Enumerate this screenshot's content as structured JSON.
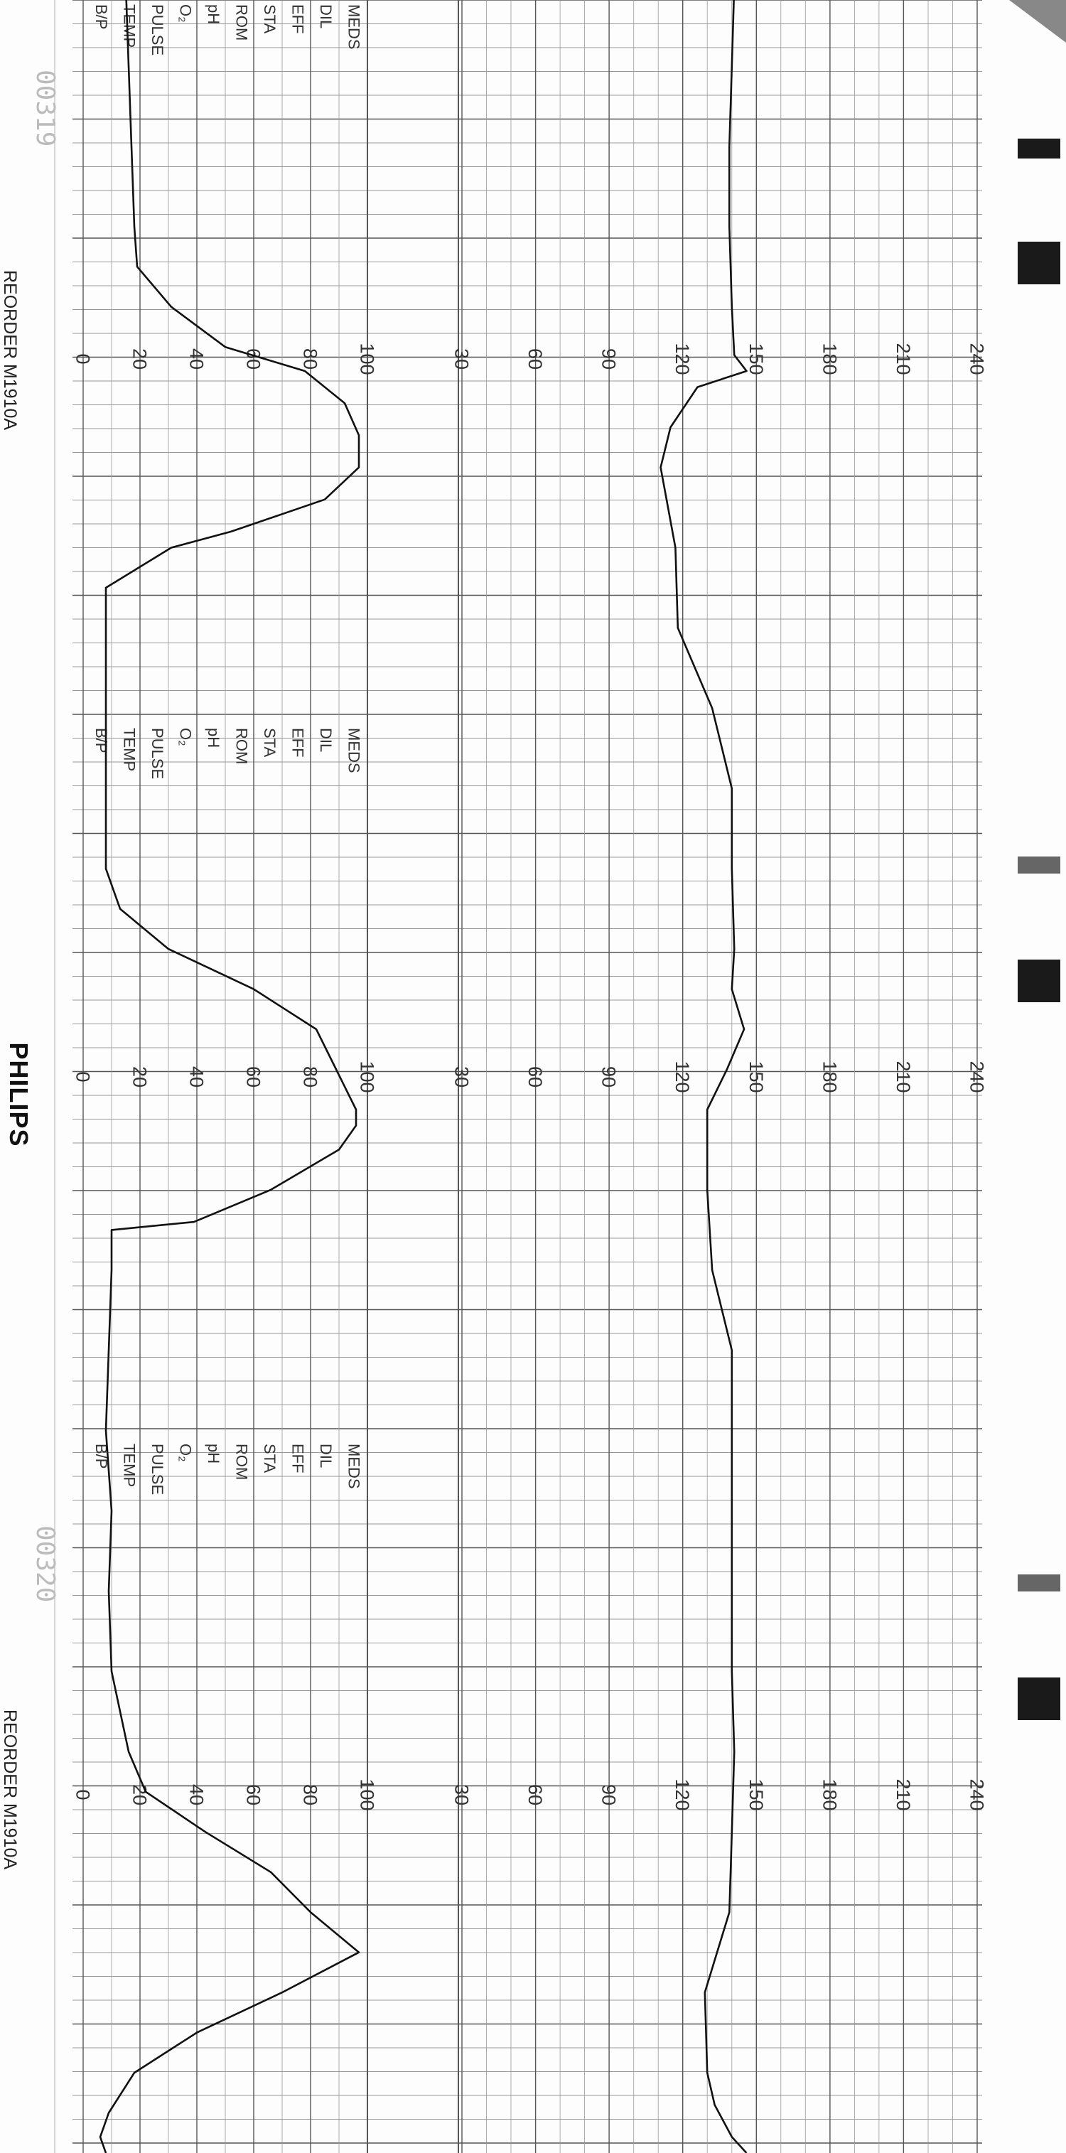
{
  "brand": "PHILIPS",
  "reorder_label": "REORDER M1910A",
  "serial_numbers": [
    "00319",
    "00320"
  ],
  "annotation_labels": [
    "MEDS",
    "DIL",
    "EFF",
    "STA",
    "ROM",
    "pH",
    "O₂",
    "PULSE",
    "TEMP",
    "B/P"
  ],
  "colors": {
    "grid": "#999999",
    "grid_major": "#555555",
    "trace": "#111111",
    "paper": "#fdfdfd",
    "mark": "#1a1a1a"
  },
  "chart_data": [
    {
      "type": "line",
      "title": "",
      "xlabel": "",
      "ylabel": "",
      "ylim": [
        30,
        240
      ],
      "y_ticks": [
        30,
        60,
        90,
        120,
        150,
        180,
        210,
        240
      ],
      "x": [
        0,
        10,
        20,
        30,
        40,
        46,
        48,
        50,
        55,
        60,
        70,
        80,
        90,
        100,
        110,
        120,
        125,
        130,
        135,
        140,
        150,
        160,
        170,
        180,
        190,
        200,
        210,
        220,
        230,
        240,
        250,
        260,
        264,
        268,
        270
      ],
      "series": [
        {
          "values": [
            141,
            140,
            139,
            139,
            140,
            141,
            146,
            126,
            115,
            111,
            117,
            118,
            132,
            140,
            140,
            141,
            140,
            145,
            138,
            130,
            130,
            132,
            140,
            140,
            140,
            140,
            140,
            141,
            140,
            139,
            129,
            130,
            133,
            140,
            146
          ]
        }
      ]
    },
    {
      "type": "line",
      "title": "",
      "xlabel": "",
      "ylabel": "",
      "ylim": [
        0,
        100
      ],
      "y_ticks": [
        0,
        20,
        40,
        60,
        80,
        100
      ],
      "x": [
        0,
        10,
        20,
        30,
        35,
        40,
        45,
        48,
        52,
        56,
        60,
        64,
        68,
        70,
        75,
        80,
        90,
        100,
        110,
        115,
        120,
        125,
        130,
        135,
        140,
        142,
        145,
        150,
        154,
        155,
        160,
        170,
        180,
        190,
        200,
        210,
        220,
        225,
        230,
        235,
        240,
        245,
        250,
        255,
        260,
        265,
        268,
        270
      ],
      "series": [
        {
          "values": [
            15,
            16,
            17,
            18,
            19,
            31,
            50,
            78,
            92,
            97,
            97,
            85,
            52,
            31,
            8,
            8,
            8,
            8,
            8,
            13,
            30,
            60,
            82,
            89,
            96,
            96,
            90,
            66,
            39,
            10,
            10,
            9,
            8,
            10,
            9,
            10,
            16,
            22,
            43,
            66,
            80,
            97,
            70,
            40,
            18,
            9,
            6,
            8
          ]
        }
      ]
    }
  ]
}
